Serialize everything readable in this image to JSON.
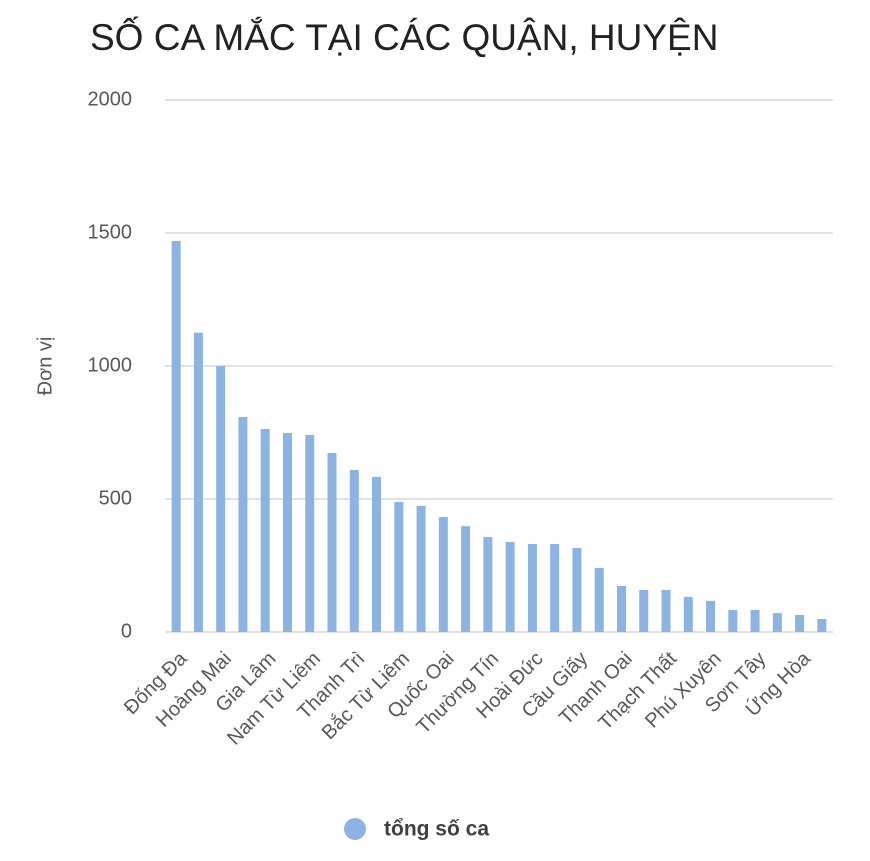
{
  "chart_data": {
    "type": "bar",
    "title": "SỐ CA MẮC TẠI CÁC QUẬN, HUYỆN",
    "y_label": "Đơn vị",
    "categories": [
      "Đống Đa",
      null,
      "Hoàng Mai",
      null,
      "Gia Lâm",
      null,
      "Nam Từ Liêm",
      null,
      "Thanh Trì",
      null,
      "Bắc Từ Liêm",
      null,
      "Quốc Oai",
      null,
      "Thường Tín",
      null,
      "Hoài Đức",
      null,
      "Cầu Giấy",
      null,
      "Thanh Oai",
      null,
      "Thạch Thất",
      null,
      "Phú Xuyên",
      null,
      "Sơn Tây",
      null,
      "Ứng Hòa",
      null
    ],
    "series": [
      {
        "name": "tổng số ca",
        "color": "#8db3e2",
        "values": [
          1470,
          1125,
          1000,
          808,
          763,
          748,
          741,
          673,
          609,
          583,
          489,
          474,
          432,
          398,
          357,
          338,
          331,
          331,
          316,
          241,
          173,
          158,
          158,
          132,
          117,
          83,
          83,
          71,
          64,
          49
        ]
      }
    ],
    "ylim": [
      0,
      2000
    ],
    "yticks": [
      0,
      500,
      1000,
      1500,
      2000
    ],
    "grid": true,
    "legend": "bottom"
  }
}
